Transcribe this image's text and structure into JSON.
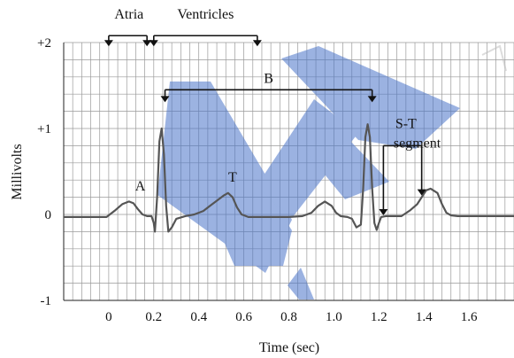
{
  "chart_data": {
    "type": "line",
    "title": "",
    "xlabel": "Time (sec)",
    "ylabel": "Millivolts",
    "xlim": [
      -0.2,
      1.8
    ],
    "ylim": [
      -1,
      2
    ],
    "grid": true,
    "x_ticks": [
      0,
      0.2,
      0.4,
      0.6,
      0.8,
      1.0,
      1.2,
      1.4,
      1.6
    ],
    "x_tick_labels": [
      "0",
      "0.2",
      "0.4",
      "0.6",
      "0.8",
      "1.0",
      "1.2",
      "1.4",
      "1.6"
    ],
    "y_ticks": [
      -1,
      0,
      1,
      2
    ],
    "y_tick_labels": [
      "-1",
      "0",
      "+1",
      "+2"
    ],
    "series": [
      {
        "name": "",
        "color": "#555555",
        "x": [
          -0.2,
          -0.01,
          0.0,
          0.03,
          0.06,
          0.09,
          0.11,
          0.13,
          0.15,
          0.17,
          0.19,
          0.2,
          0.205,
          0.215,
          0.225,
          0.235,
          0.245,
          0.255,
          0.265,
          0.28,
          0.3,
          0.34,
          0.38,
          0.42,
          0.45,
          0.48,
          0.51,
          0.53,
          0.55,
          0.57,
          0.59,
          0.62,
          0.65,
          0.7,
          0.8,
          0.86,
          0.9,
          0.93,
          0.96,
          0.99,
          1.01,
          1.03,
          1.06,
          1.08,
          1.1,
          1.12,
          1.13,
          1.14,
          1.15,
          1.16,
          1.17,
          1.18,
          1.19,
          1.2,
          1.21,
          1.23,
          1.25,
          1.3,
          1.34,
          1.37,
          1.41,
          1.43,
          1.46,
          1.48,
          1.5,
          1.52,
          1.55,
          1.6,
          1.8
        ],
        "y": [
          -0.03,
          -0.03,
          -0.01,
          0.05,
          0.12,
          0.15,
          0.13,
          0.06,
          0.0,
          -0.02,
          -0.02,
          -0.1,
          -0.2,
          0.2,
          0.85,
          1.0,
          0.7,
          0.1,
          -0.2,
          -0.15,
          -0.05,
          -0.02,
          0.0,
          0.04,
          0.1,
          0.16,
          0.22,
          0.25,
          0.2,
          0.08,
          0.0,
          -0.03,
          -0.03,
          -0.03,
          -0.03,
          -0.02,
          0.02,
          0.1,
          0.15,
          0.1,
          0.02,
          -0.02,
          -0.03,
          -0.05,
          -0.15,
          -0.12,
          0.3,
          0.9,
          1.05,
          0.9,
          0.3,
          -0.1,
          -0.18,
          -0.1,
          -0.03,
          -0.02,
          -0.02,
          -0.02,
          0.05,
          0.12,
          0.28,
          0.3,
          0.25,
          0.12,
          0.02,
          -0.01,
          -0.02,
          -0.02,
          -0.02
        ]
      }
    ],
    "annotations": [
      {
        "text": "Atria",
        "x": 0.09,
        "y": 2.28
      },
      {
        "text": "Ventricles",
        "x": 0.43,
        "y": 2.28
      },
      {
        "text": "B",
        "x": 0.71,
        "y": 1.53
      },
      {
        "text": "S-T",
        "x": 1.32,
        "y": 0.9
      },
      {
        "text": "segment",
        "x": 1.37,
        "y": 0.9
      },
      {
        "text": "A",
        "x": 0.14,
        "y": 0.28
      },
      {
        "text": "T",
        "x": 0.55,
        "y": 0.38
      }
    ],
    "brackets": [
      {
        "name": "atria",
        "x0": 0.0,
        "x1": 0.17,
        "y": 2.08,
        "arrows": "down"
      },
      {
        "name": "ventricles",
        "x0": 0.2,
        "x1": 0.66,
        "y": 2.08,
        "arrows": "down"
      },
      {
        "name": "b",
        "x0": 0.25,
        "x1": 1.17,
        "y": 1.45,
        "arrows": "down"
      },
      {
        "name": "st",
        "x0": 1.22,
        "x1": 1.39,
        "y": 0.8,
        "arrows": "down"
      }
    ]
  },
  "watermark": {
    "color": "#4a74c9"
  }
}
